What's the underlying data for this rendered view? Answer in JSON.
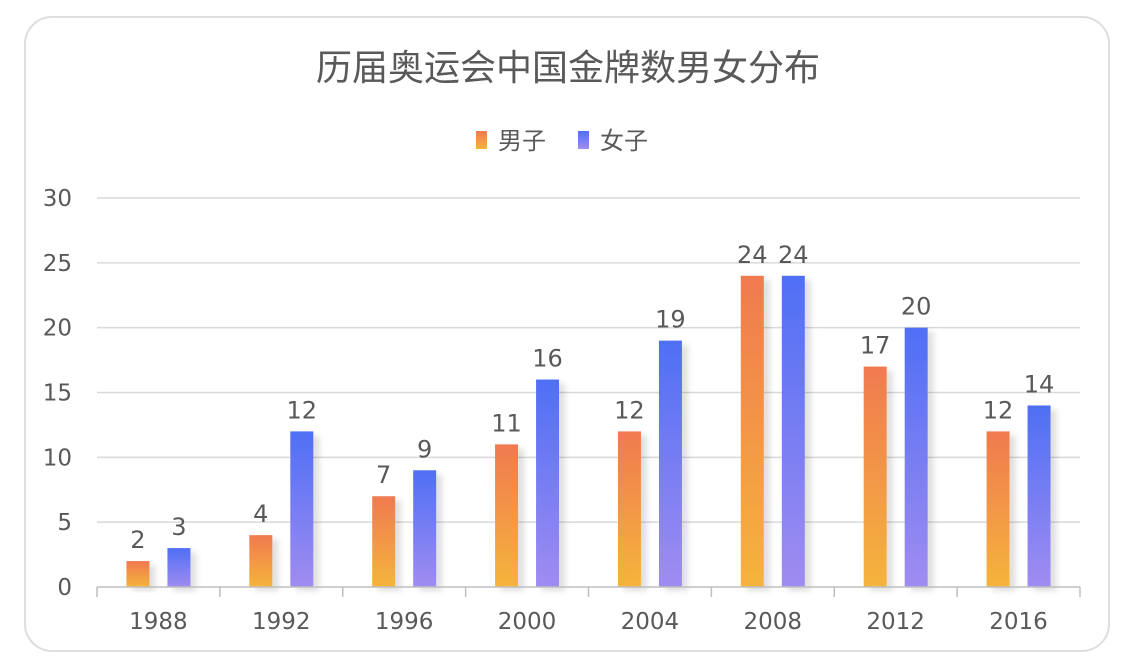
{
  "chart_data": {
    "type": "bar",
    "title": "历届奥运会中国金牌数男女分布",
    "categories": [
      "1988",
      "1992",
      "1996",
      "2000",
      "2004",
      "2008",
      "2012",
      "2016"
    ],
    "series": [
      {
        "name": "男子",
        "values": [
          2,
          4,
          7,
          11,
          12,
          24,
          17,
          12
        ],
        "colors": [
          "#f07a50",
          "#f5b43c"
        ]
      },
      {
        "name": "女子",
        "values": [
          3,
          12,
          9,
          16,
          19,
          24,
          20,
          14
        ],
        "colors": [
          "#4f6ff5",
          "#a08cf0"
        ]
      }
    ],
    "yticks": [
      "0",
      "5",
      "10",
      "15",
      "20",
      "25",
      "30"
    ],
    "ylim": [
      0,
      30
    ],
    "legend_position": "top-center",
    "grid": true,
    "data_labels": true
  }
}
